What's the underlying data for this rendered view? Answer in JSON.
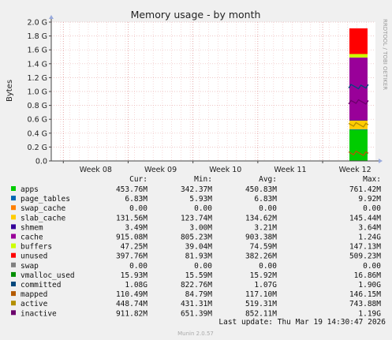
{
  "chart_data": {
    "type": "area",
    "title": "Memory usage - by month",
    "ylabel": "Bytes",
    "side_label": "RRDTOOL / TOBI OETIKER",
    "x_ticks": [
      "Week 08",
      "Week 09",
      "Week 10",
      "Week 11",
      "Week 12"
    ],
    "y_ticks": [
      "0.0",
      "0.2 G",
      "0.4 G",
      "0.6 G",
      "0.8 G",
      "1.0 G",
      "1.2 G",
      "1.4 G",
      "1.6 G",
      "1.8 G",
      "2.0 G"
    ],
    "ylim": [
      0,
      2.0
    ],
    "y_unit": "G",
    "grid": true,
    "stack": {
      "apps": 0.45,
      "page_tables": 0.007,
      "swap_cache": 0,
      "slab_cache": 0.13,
      "shmem": 0.003,
      "cache": 0.9,
      "buffers": 0.05,
      "unused": 0.37
    },
    "lines": {
      "committed": 1.07,
      "mapped": 0.11,
      "active": 0.52,
      "inactive": 0.85
    },
    "table_headers": [
      "Cur:",
      "Min:",
      "Avg:",
      "Max:"
    ],
    "legend": [
      {
        "name": "apps",
        "color": "#00cc00",
        "cur": "453.76M",
        "min": "342.37M",
        "avg": "450.83M",
        "max": "761.42M"
      },
      {
        "name": "page_tables",
        "color": "#0066b3",
        "cur": "6.83M",
        "min": "5.93M",
        "avg": "6.83M",
        "max": "9.92M"
      },
      {
        "name": "swap_cache",
        "color": "#ff8000",
        "cur": "0.00",
        "min": "0.00",
        "avg": "0.00",
        "max": "0.00"
      },
      {
        "name": "slab_cache",
        "color": "#ffcc00",
        "cur": "131.56M",
        "min": "123.74M",
        "avg": "134.62M",
        "max": "145.44M"
      },
      {
        "name": "shmem",
        "color": "#330099",
        "cur": "3.49M",
        "min": "3.00M",
        "avg": "3.21M",
        "max": "3.64M"
      },
      {
        "name": "cache",
        "color": "#990099",
        "cur": "915.08M",
        "min": "805.23M",
        "avg": "903.38M",
        "max": "1.24G"
      },
      {
        "name": "buffers",
        "color": "#ccff00",
        "cur": "47.25M",
        "min": "39.04M",
        "avg": "74.59M",
        "max": "147.13M"
      },
      {
        "name": "unused",
        "color": "#ff0000",
        "cur": "397.76M",
        "min": "81.93M",
        "avg": "382.26M",
        "max": "509.23M"
      },
      {
        "name": "swap",
        "color": "#808080",
        "cur": "0.00",
        "min": "0.00",
        "avg": "0.00",
        "max": "0.00"
      },
      {
        "name": "vmalloc_used",
        "color": "#008f00",
        "cur": "15.93M",
        "min": "15.59M",
        "avg": "15.92M",
        "max": "16.86M"
      },
      {
        "name": "committed",
        "color": "#00487d",
        "cur": "1.08G",
        "min": "822.76M",
        "avg": "1.07G",
        "max": "1.90G"
      },
      {
        "name": "mapped",
        "color": "#b35a00",
        "cur": "110.49M",
        "min": "84.79M",
        "avg": "117.10M",
        "max": "146.15M"
      },
      {
        "name": "active",
        "color": "#b38f00",
        "cur": "448.74M",
        "min": "431.31M",
        "avg": "519.31M",
        "max": "743.88M"
      },
      {
        "name": "inactive",
        "color": "#6b006b",
        "cur": "911.82M",
        "min": "651.39M",
        "avg": "852.11M",
        "max": "1.19G"
      }
    ],
    "last_update": "Last update: Thu Mar 19 14:30:47 2026",
    "footer": "Munin 2.0.57"
  }
}
